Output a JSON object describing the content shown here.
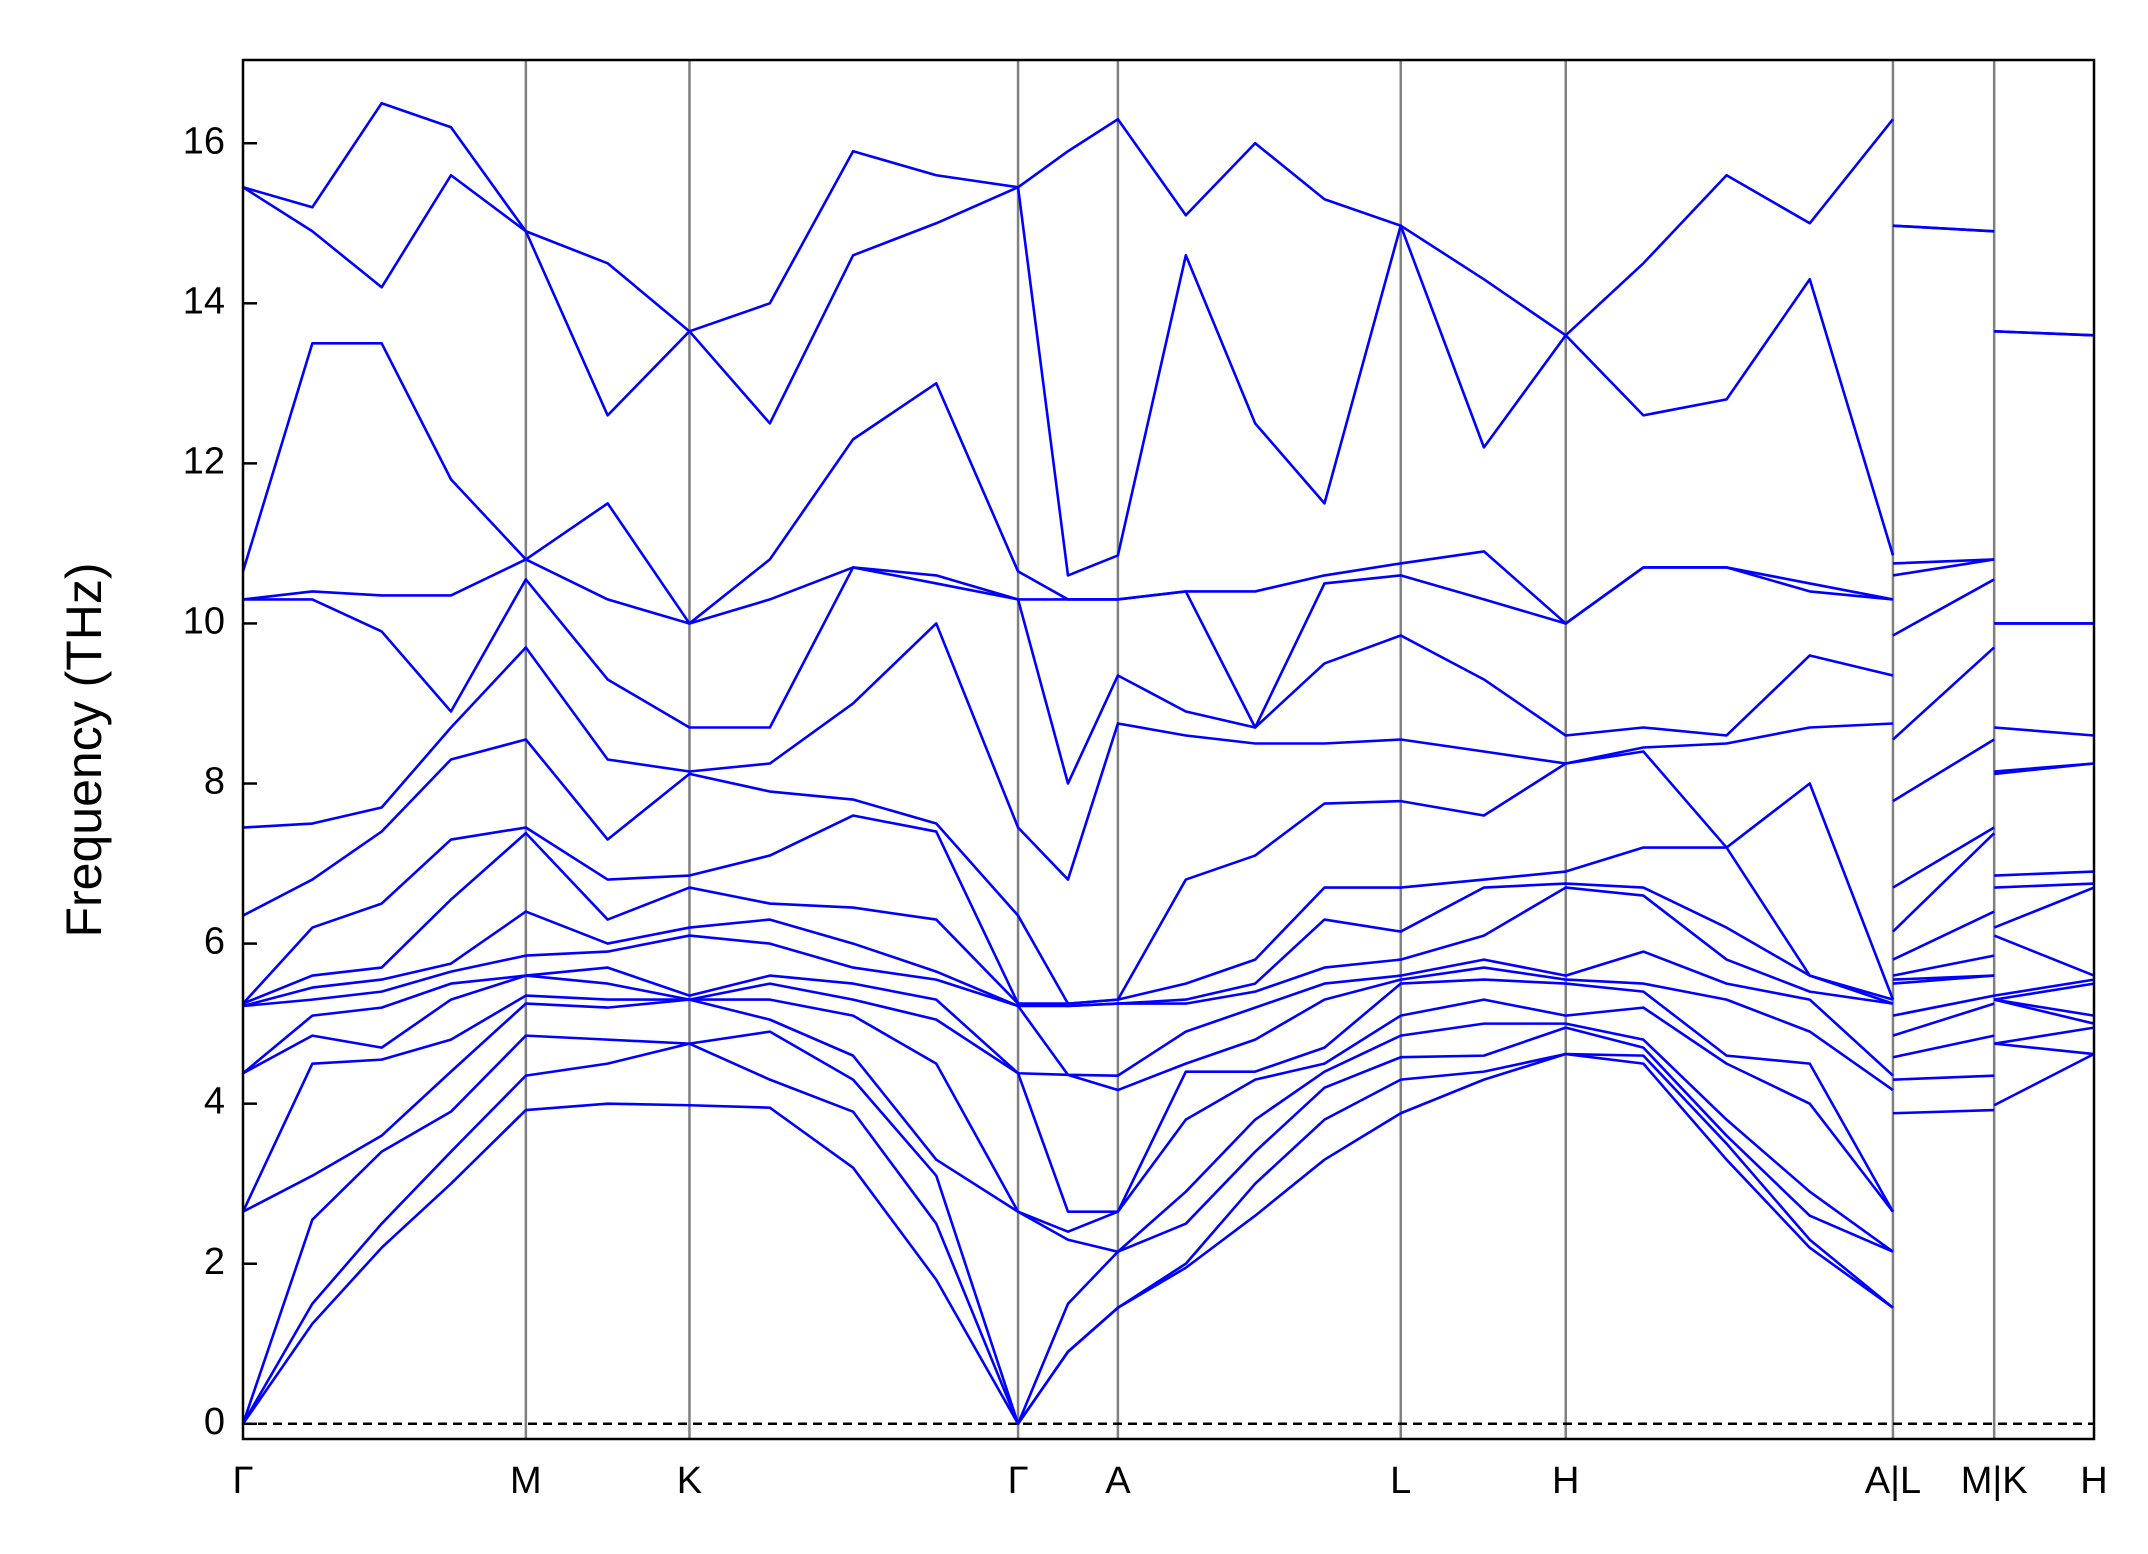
{
  "chart_data": {
    "type": "line",
    "ylabel": "Frequency (THz)",
    "color": "#0000ff",
    "ylim": [
      -0.19,
      17.04
    ],
    "yticks": [
      0,
      2,
      4,
      6,
      8,
      10,
      12,
      14,
      16
    ],
    "xlim": [
      0,
      1.335
    ],
    "xticks": [
      {
        "value": 0,
        "label": "Γ"
      },
      {
        "value": 0.204,
        "label": "M"
      },
      {
        "value": 0.322,
        "label": "K"
      },
      {
        "value": 0.559,
        "label": "Γ"
      },
      {
        "value": 0.631,
        "label": "A"
      },
      {
        "value": 0.835,
        "label": "L"
      },
      {
        "value": 0.954,
        "label": "H"
      },
      {
        "value": 1.19,
        "label": "A|L"
      },
      {
        "value": 1.263,
        "label": "M|K"
      },
      {
        "value": 1.335,
        "label": "H"
      }
    ],
    "hline": 0,
    "x": [
      0,
      0.05,
      0.1,
      0.15,
      0.204,
      0.263,
      0.322,
      0.38,
      0.44,
      0.5,
      0.559,
      0.595,
      0.631,
      0.68,
      0.73,
      0.78,
      0.835,
      0.895,
      0.954,
      1.01,
      1.07,
      1.13,
      1.19,
      1.19,
      1.19,
      1.263,
      1.263,
      1.263,
      1.335
    ],
    "series": [
      {
        "values": [
          0,
          1.25,
          2.2,
          3.0,
          3.92,
          4.0,
          3.98,
          3.95,
          3.2,
          1.8,
          0,
          0.9,
          1.45,
          1.95,
          2.6,
          3.3,
          3.88,
          4.3,
          4.62,
          4.5,
          3.3,
          2.2,
          1.45,
          null,
          3.88,
          3.92,
          null,
          3.98,
          4.62
        ]
      },
      {
        "values": [
          0,
          1.5,
          2.5,
          3.4,
          4.35,
          4.5,
          4.75,
          4.3,
          3.9,
          2.5,
          0,
          0.9,
          1.45,
          2.0,
          3.0,
          3.8,
          4.3,
          4.4,
          4.62,
          4.6,
          3.5,
          2.3,
          1.45,
          null,
          4.3,
          4.35,
          null,
          4.75,
          4.62
        ]
      },
      {
        "values": [
          0,
          2.55,
          3.4,
          3.9,
          4.85,
          4.8,
          4.75,
          4.9,
          4.3,
          3.1,
          0,
          1.5,
          2.15,
          2.5,
          3.4,
          4.2,
          4.58,
          4.6,
          4.95,
          4.7,
          3.6,
          2.6,
          2.15,
          null,
          4.58,
          4.85,
          null,
          4.75,
          4.95
        ]
      },
      {
        "values": [
          2.65,
          3.1,
          3.6,
          4.4,
          5.25,
          5.2,
          5.3,
          5.05,
          4.6,
          3.3,
          2.65,
          2.3,
          2.15,
          2.9,
          3.8,
          4.4,
          4.85,
          5.0,
          5.0,
          4.8,
          3.8,
          2.9,
          2.15,
          null,
          4.85,
          5.25,
          null,
          5.3,
          5.0
        ]
      },
      {
        "values": [
          2.65,
          4.5,
          4.55,
          4.8,
          5.35,
          5.3,
          5.3,
          5.3,
          5.1,
          4.5,
          2.65,
          2.4,
          2.65,
          3.8,
          4.3,
          4.5,
          5.1,
          5.3,
          5.1,
          5.2,
          4.5,
          4.0,
          2.65,
          null,
          5.1,
          5.35,
          null,
          5.3,
          5.1
        ]
      },
      {
        "values": [
          4.38,
          4.85,
          4.7,
          5.3,
          5.6,
          5.5,
          5.3,
          5.5,
          5.3,
          5.05,
          4.38,
          2.65,
          2.65,
          4.4,
          4.4,
          4.7,
          5.5,
          5.55,
          5.5,
          5.4,
          4.6,
          4.5,
          2.65,
          null,
          5.5,
          5.6,
          null,
          5.3,
          5.5
        ]
      },
      {
        "values": [
          4.38,
          5.1,
          5.2,
          5.5,
          5.6,
          5.7,
          5.35,
          5.6,
          5.5,
          5.3,
          4.38,
          4.36,
          4.17,
          4.5,
          4.8,
          5.3,
          5.55,
          5.7,
          5.55,
          5.5,
          5.3,
          4.9,
          4.17,
          null,
          5.55,
          5.6,
          null,
          5.35,
          5.55
        ]
      },
      {
        "values": [
          5.22,
          5.3,
          5.4,
          5.65,
          5.85,
          5.9,
          6.1,
          6.0,
          5.7,
          5.55,
          5.22,
          4.36,
          4.35,
          4.9,
          5.2,
          5.5,
          5.6,
          5.8,
          5.6,
          5.9,
          5.5,
          5.3,
          4.35,
          null,
          5.6,
          5.85,
          null,
          6.1,
          5.6
        ]
      },
      {
        "values": [
          5.22,
          5.45,
          5.55,
          5.75,
          6.4,
          6.0,
          6.2,
          6.3,
          6.0,
          5.65,
          5.22,
          5.22,
          5.25,
          5.25,
          5.4,
          5.7,
          5.8,
          6.1,
          6.7,
          6.6,
          5.8,
          5.4,
          5.25,
          null,
          5.8,
          6.4,
          null,
          6.2,
          6.7
        ]
      },
      {
        "values": [
          5.25,
          5.6,
          5.7,
          6.55,
          7.38,
          6.3,
          6.7,
          6.5,
          6.45,
          6.3,
          5.25,
          5.22,
          5.25,
          5.3,
          5.5,
          6.3,
          6.15,
          6.7,
          6.75,
          6.7,
          6.2,
          5.6,
          5.25,
          null,
          6.15,
          7.38,
          null,
          6.7,
          6.75
        ]
      },
      {
        "values": [
          5.25,
          6.2,
          6.5,
          7.3,
          7.45,
          6.8,
          6.85,
          7.1,
          7.6,
          7.4,
          5.25,
          5.25,
          5.3,
          5.5,
          5.8,
          6.7,
          6.7,
          6.8,
          6.9,
          7.2,
          7.2,
          5.6,
          5.3,
          null,
          6.7,
          7.45,
          null,
          6.85,
          6.9
        ]
      },
      {
        "values": [
          6.35,
          6.8,
          7.4,
          8.3,
          8.55,
          7.3,
          8.12,
          7.9,
          7.8,
          7.5,
          6.35,
          5.25,
          5.3,
          6.8,
          7.1,
          7.75,
          7.78,
          7.6,
          8.25,
          8.4,
          7.2,
          8.0,
          5.3,
          null,
          7.78,
          8.55,
          null,
          8.12,
          8.25
        ]
      },
      {
        "values": [
          7.45,
          7.5,
          7.7,
          8.7,
          9.7,
          8.3,
          8.15,
          8.25,
          9.0,
          10.0,
          7.45,
          6.8,
          8.75,
          8.6,
          8.5,
          8.5,
          8.55,
          8.4,
          8.25,
          8.45,
          8.5,
          8.7,
          8.75,
          null,
          8.55,
          9.7,
          null,
          8.15,
          8.25
        ]
      },
      {
        "values": [
          10.3,
          10.3,
          9.9,
          8.9,
          10.55,
          9.3,
          8.7,
          8.7,
          10.7,
          10.5,
          10.3,
          8.0,
          9.35,
          8.9,
          8.7,
          9.5,
          9.85,
          9.3,
          8.6,
          8.7,
          8.6,
          9.6,
          9.35,
          null,
          9.85,
          10.55,
          null,
          8.7,
          8.6
        ]
      },
      {
        "values": [
          10.3,
          10.4,
          10.35,
          10.35,
          10.8,
          10.3,
          10.0,
          10.3,
          10.7,
          10.6,
          10.3,
          10.3,
          10.3,
          10.4,
          8.7,
          10.5,
          10.6,
          10.3,
          10.0,
          10.7,
          10.7,
          10.4,
          10.3,
          null,
          10.6,
          10.8,
          null,
          10.0,
          10.0
        ]
      },
      {
        "values": [
          10.65,
          13.5,
          13.5,
          11.8,
          10.8,
          11.5,
          10.0,
          10.8,
          12.3,
          13.0,
          10.65,
          10.3,
          10.3,
          10.4,
          10.4,
          10.6,
          10.75,
          10.9,
          10.0,
          10.7,
          10.7,
          10.5,
          10.3,
          null,
          10.75,
          10.8,
          null,
          10.0,
          10.0
        ]
      },
      {
        "values": [
          15.45,
          14.9,
          14.2,
          15.6,
          14.9,
          12.6,
          13.65,
          12.5,
          14.6,
          15.0,
          15.45,
          10.6,
          10.85,
          14.6,
          12.5,
          11.5,
          14.97,
          12.2,
          13.6,
          12.6,
          12.8,
          14.3,
          10.85,
          null,
          14.97,
          14.9,
          null,
          13.65,
          13.6
        ]
      },
      {
        "values": [
          15.45,
          15.2,
          16.5,
          16.2,
          14.9,
          14.5,
          13.65,
          14.0,
          15.9,
          15.6,
          15.45,
          15.9,
          16.3,
          15.1,
          16.0,
          15.3,
          14.97,
          14.3,
          13.6,
          14.5,
          15.6,
          15.0,
          16.3,
          null,
          14.97,
          14.9,
          null,
          13.65,
          13.6
        ]
      }
    ]
  }
}
